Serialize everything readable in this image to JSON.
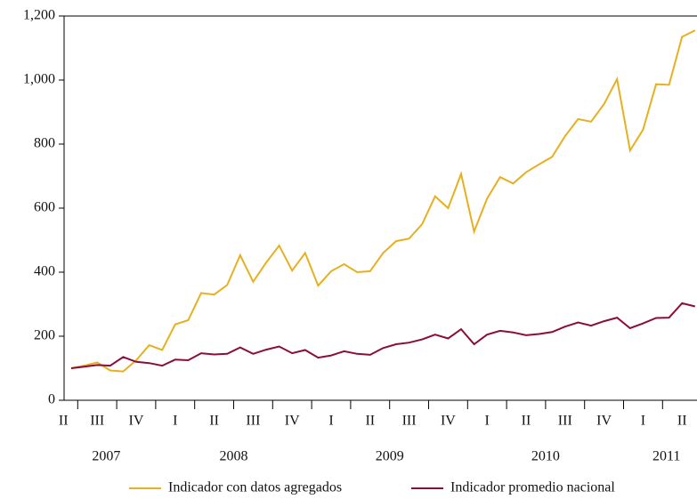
{
  "chart_data": {
    "type": "line",
    "categories": [
      null,
      null,
      null,
      null,
      null,
      null,
      null,
      null,
      null,
      null,
      null,
      null,
      null,
      null,
      null,
      null,
      null,
      null,
      null,
      null,
      null,
      null,
      null,
      null,
      null,
      null,
      null,
      null,
      null,
      null,
      null,
      null,
      null,
      null,
      null,
      null,
      null,
      null,
      null,
      null,
      null,
      null,
      null,
      null,
      null,
      null,
      null,
      null,
      null
    ],
    "series": [
      {
        "name": "Indicador con datos agregados",
        "color": "#e6b020",
        "values": [
          100,
          108,
          118,
          93,
          90,
          125,
          172,
          157,
          237,
          250,
          335,
          330,
          360,
          453,
          370,
          430,
          483,
          405,
          460,
          358,
          403,
          425,
          400,
          403,
          460,
          497,
          505,
          550,
          637,
          600,
          707,
          527,
          630,
          697,
          677,
          712,
          737,
          760,
          825,
          878,
          870,
          925,
          1003,
          780,
          845,
          987,
          985,
          1135,
          1155
        ]
      },
      {
        "name": "Indicador promedio nacional",
        "color": "#8b0d3a",
        "values": [
          100,
          105,
          110,
          108,
          135,
          120,
          116,
          108,
          127,
          125,
          147,
          143,
          145,
          165,
          145,
          158,
          168,
          147,
          157,
          133,
          140,
          153,
          145,
          142,
          163,
          175,
          180,
          190,
          205,
          193,
          222,
          175,
          205,
          217,
          212,
          203,
          207,
          213,
          230,
          243,
          233,
          247,
          258,
          225,
          240,
          257,
          258,
          303,
          293
        ]
      }
    ],
    "ylim": [
      0,
      1200
    ],
    "yticks": [
      0,
      200,
      400,
      600,
      800,
      {
        "value": 1000,
        "label": "1,000"
      },
      {
        "value": 1200,
        "label": "1,200"
      }
    ],
    "xticks": [
      {
        "value": -0.6,
        "label": "II"
      },
      {
        "value": 2,
        "label": "III"
      },
      {
        "value": 5,
        "label": "IV"
      },
      {
        "value": 8,
        "label": "I"
      },
      {
        "value": 11,
        "label": "II"
      },
      {
        "value": 14,
        "label": "III"
      },
      {
        "value": 17,
        "label": "IV"
      },
      {
        "value": 20,
        "label": "I"
      },
      {
        "value": 23,
        "label": "II"
      },
      {
        "value": 26,
        "label": "III"
      },
      {
        "value": 29,
        "label": "IV"
      },
      {
        "value": 32,
        "label": "I"
      },
      {
        "value": 35,
        "label": "II"
      },
      {
        "value": 38,
        "label": "III"
      },
      {
        "value": 41,
        "label": "IV"
      },
      {
        "value": 44,
        "label": "I"
      },
      {
        "value": 47,
        "label": "II"
      }
    ],
    "quarter_bounds": [
      0.5,
      3.5,
      6.5,
      9.5,
      12.5,
      15.5,
      18.5,
      21.5,
      24.5,
      27.5,
      30.5,
      33.5,
      36.5,
      39.5,
      42.5,
      45.5
    ],
    "year_labels": [
      {
        "value": 2.7,
        "label": "2007"
      },
      {
        "value": 12.5,
        "label": "2008"
      },
      {
        "value": 24.5,
        "label": "2009"
      },
      {
        "value": 36.5,
        "label": "2010"
      },
      {
        "value": 45.8,
        "label": "2011"
      }
    ],
    "legend": "bottom"
  }
}
